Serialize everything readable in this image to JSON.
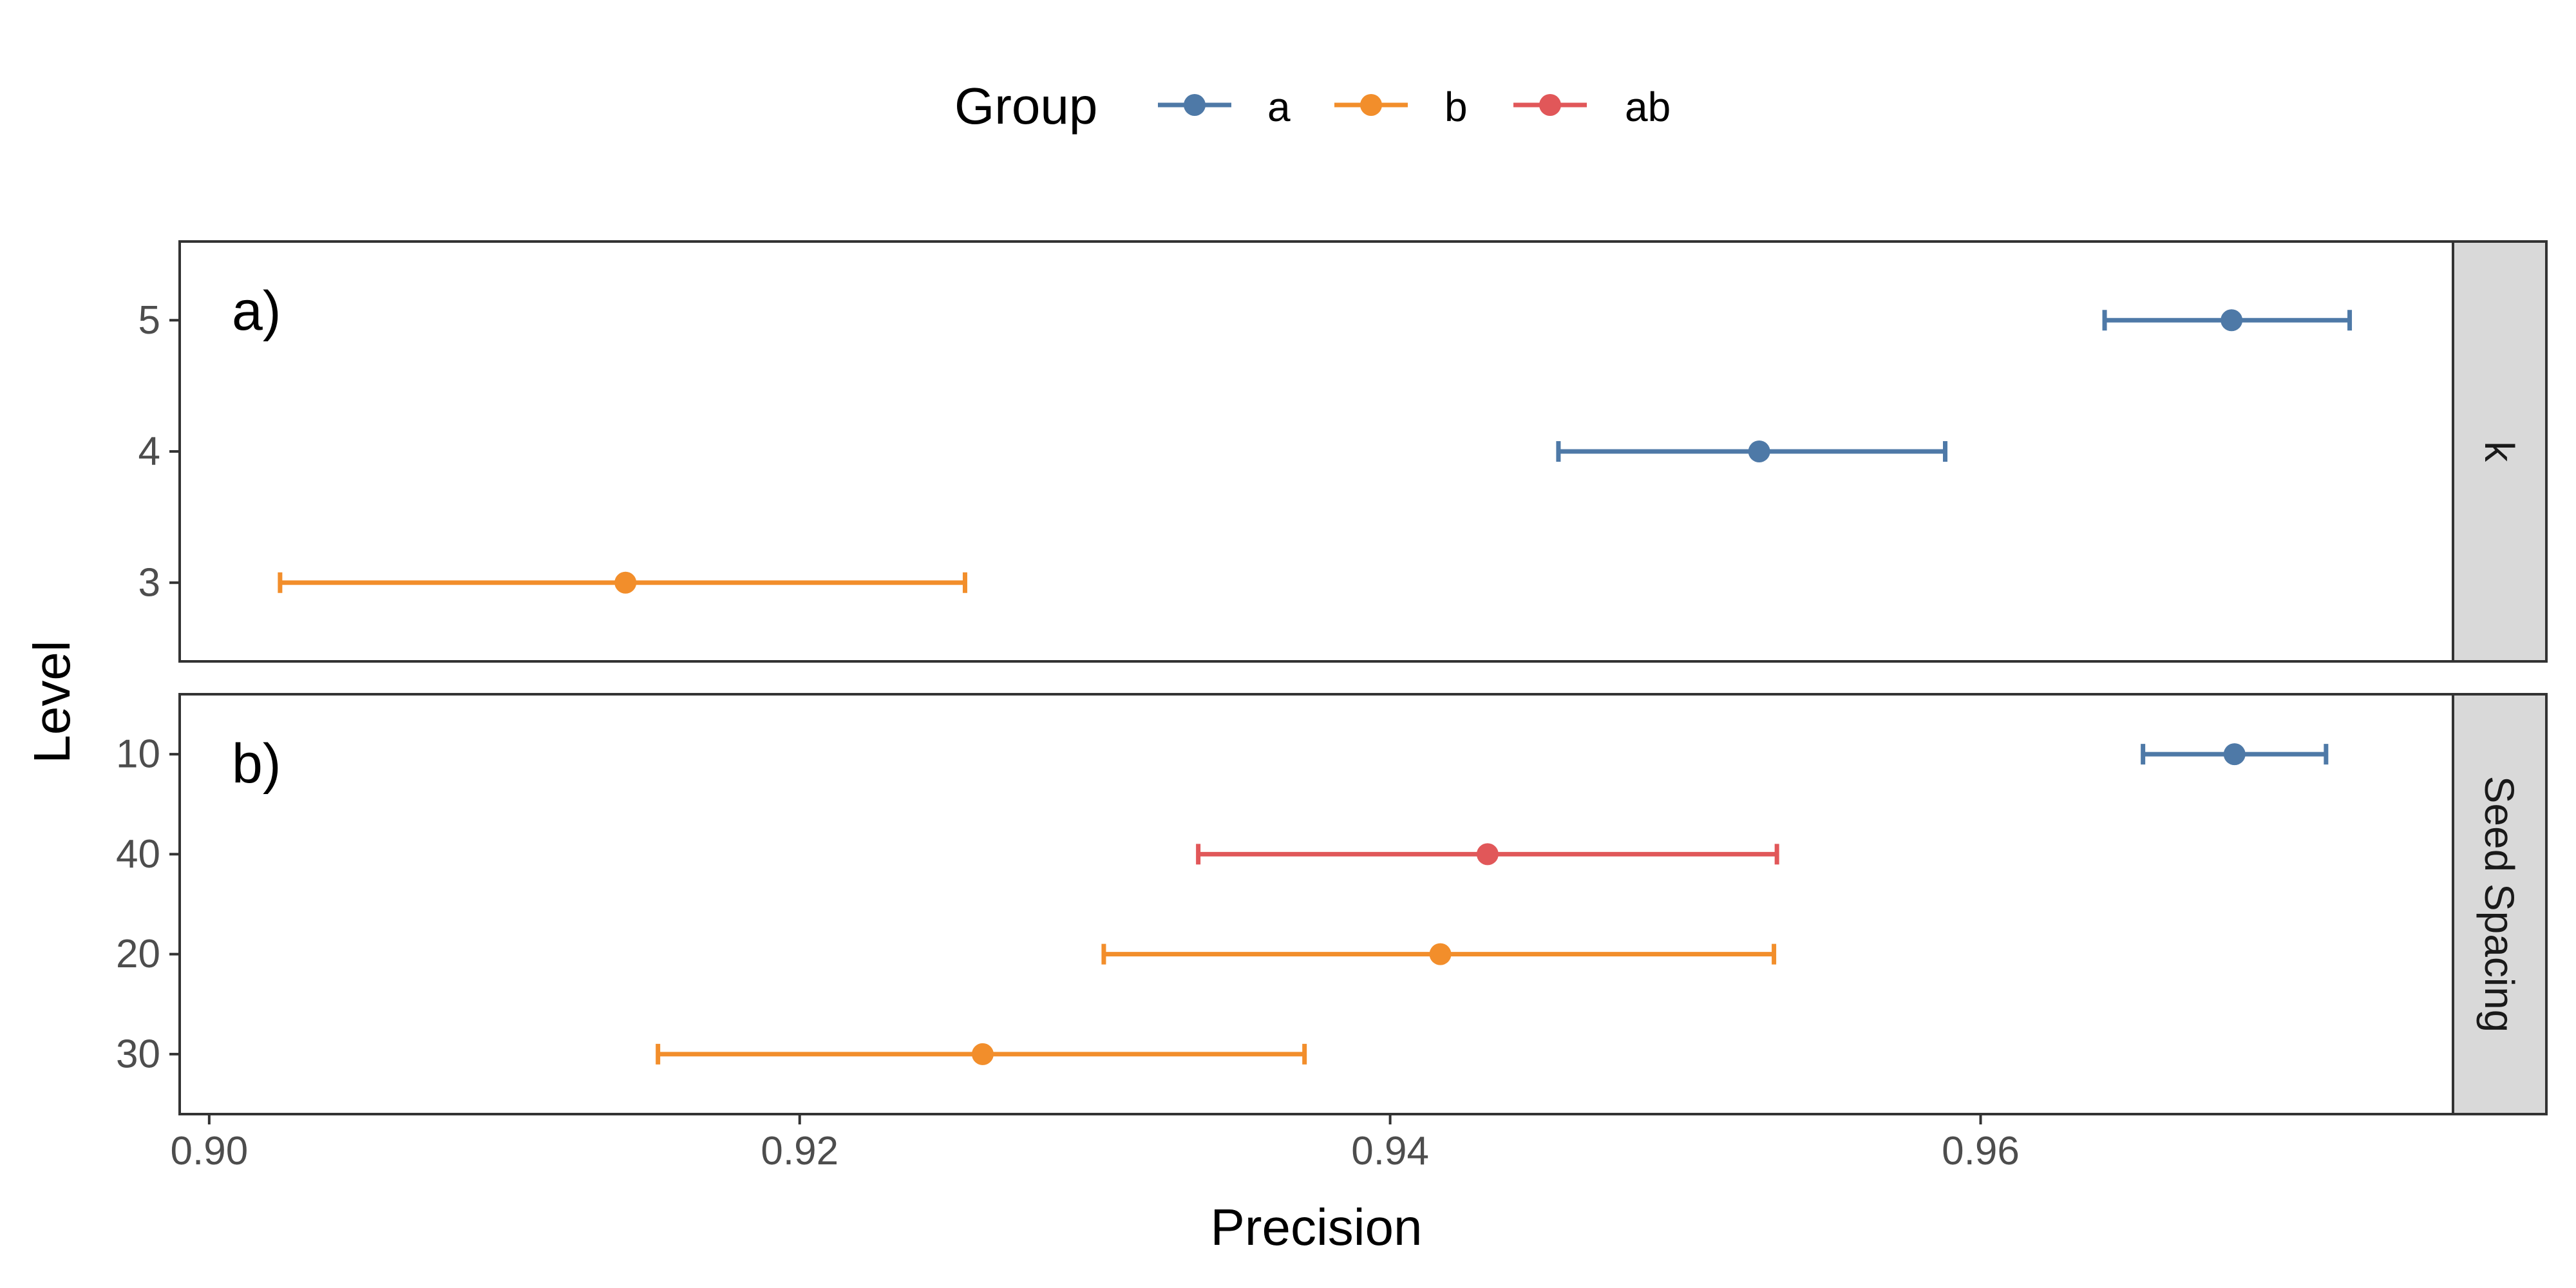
{
  "chart_data": {
    "type": "dot-errorbar",
    "xlabel": "Precision",
    "ylabel": "Level",
    "xlim": [
      0.899,
      0.976
    ],
    "x_ticks": [
      0.9,
      0.92,
      0.94,
      0.96
    ],
    "x_tick_labels": [
      "0.90",
      "0.92",
      "0.94",
      "0.96"
    ],
    "legend": {
      "title": "Group",
      "position": "top",
      "entries": [
        {
          "label": "a",
          "color": "#4e79a7"
        },
        {
          "label": "b",
          "color": "#f28e2b"
        },
        {
          "label": "ab",
          "color": "#e15759"
        }
      ]
    },
    "panels": [
      {
        "tag": "a)",
        "strip": "k",
        "levels": [
          "5",
          "4",
          "3"
        ],
        "points": [
          {
            "level": "5",
            "group": "a",
            "x": 0.9685,
            "lo": 0.9642,
            "hi": 0.9725
          },
          {
            "level": "4",
            "group": "a",
            "x": 0.9525,
            "lo": 0.9457,
            "hi": 0.9588
          },
          {
            "level": "3",
            "group": "b",
            "x": 0.9141,
            "lo": 0.9024,
            "hi": 0.9256
          }
        ]
      },
      {
        "tag": "b)",
        "strip": "Seed Spacing",
        "levels": [
          "10",
          "40",
          "20",
          "30"
        ],
        "points": [
          {
            "level": "10",
            "group": "a",
            "x": 0.9686,
            "lo": 0.9655,
            "hi": 0.9717
          },
          {
            "level": "40",
            "group": "ab",
            "x": 0.9433,
            "lo": 0.9335,
            "hi": 0.9531
          },
          {
            "level": "20",
            "group": "b",
            "x": 0.9417,
            "lo": 0.9303,
            "hi": 0.953
          },
          {
            "level": "30",
            "group": "b",
            "x": 0.9262,
            "lo": 0.9152,
            "hi": 0.9371
          }
        ]
      }
    ]
  }
}
